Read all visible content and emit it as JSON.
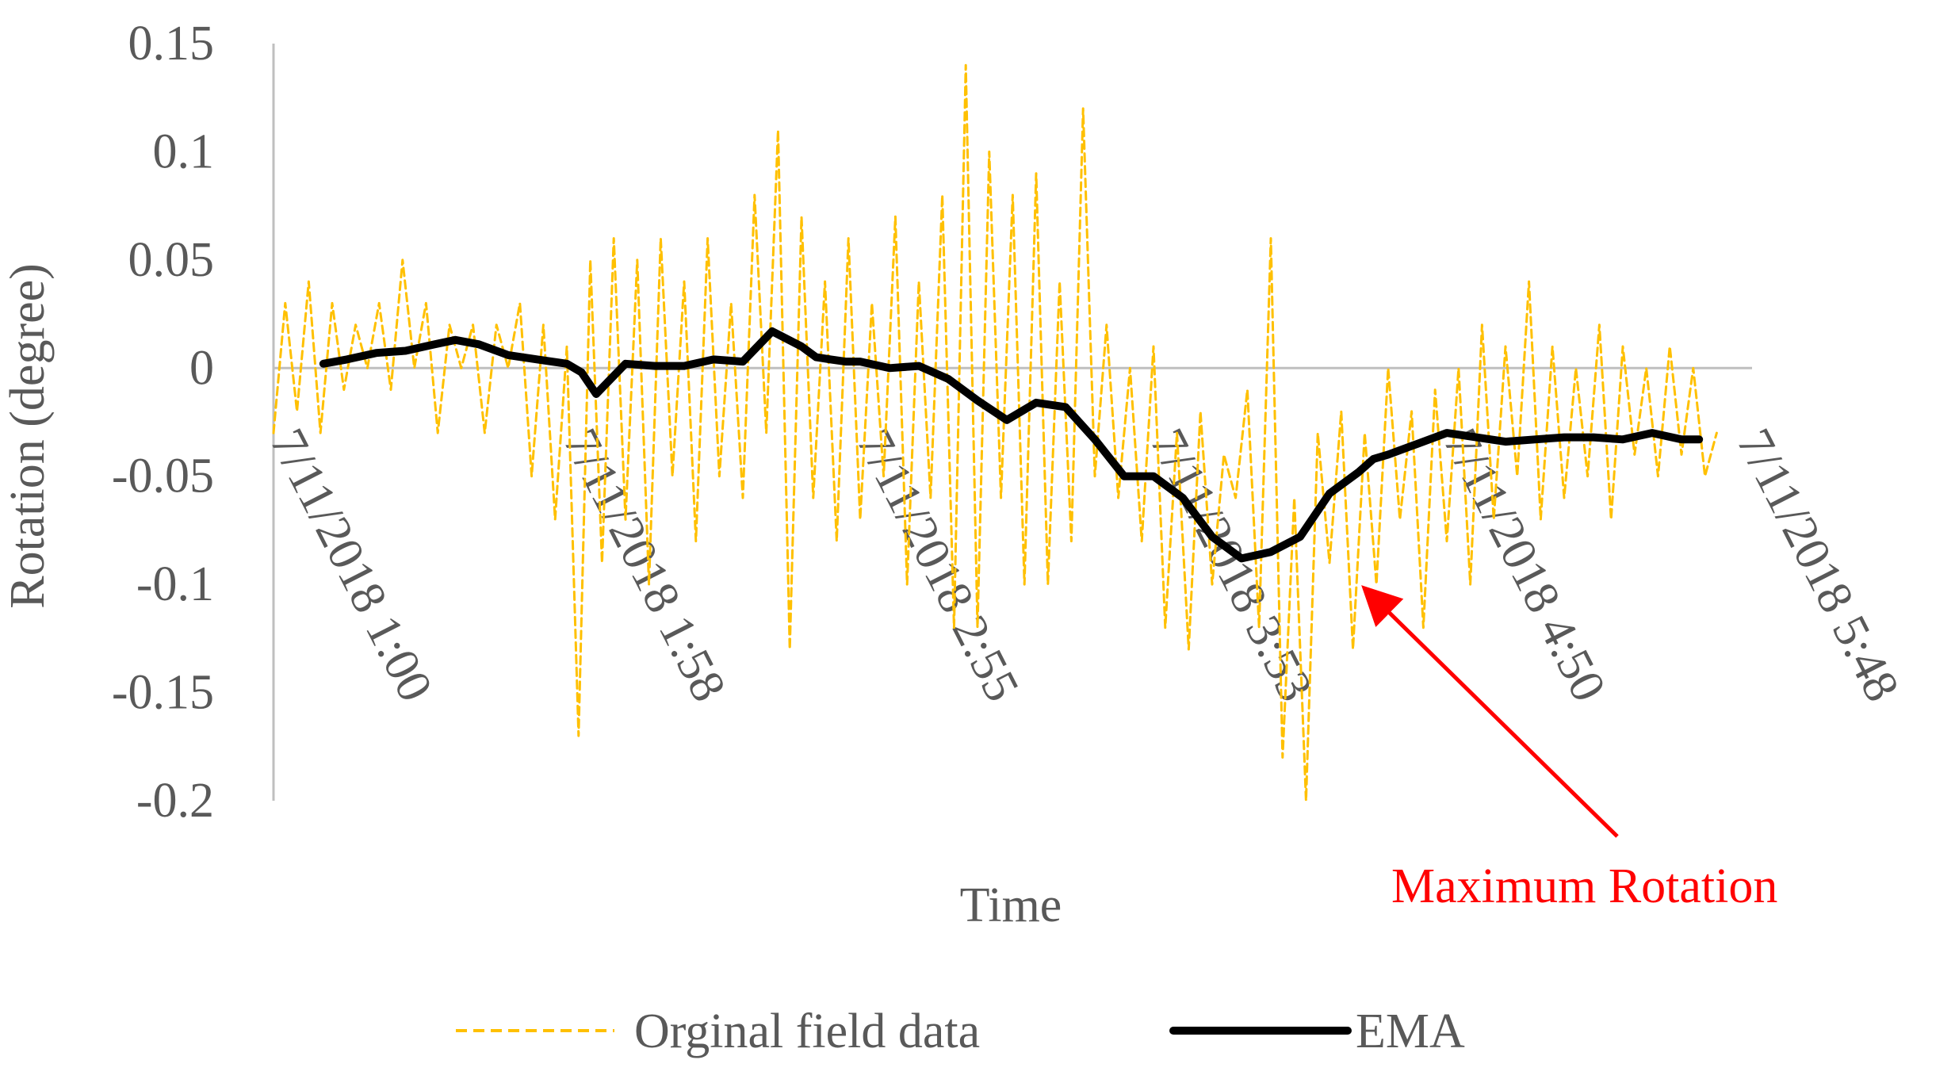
{
  "chart_data": {
    "type": "line",
    "title": "",
    "xlabel": "Time",
    "ylabel": "Rotation (degree)",
    "ylim": [
      -0.2,
      0.15
    ],
    "yticks": [
      0.15,
      0.1,
      0.05,
      0,
      -0.05,
      -0.1,
      -0.15,
      -0.2
    ],
    "ytick_labels": [
      "0.15",
      "0.1",
      "0.05",
      "0",
      "-0.05",
      "-0.1",
      "-0.15",
      "-0.2"
    ],
    "x_categories": [
      "7/11/2018 1:00",
      "7/11/2018 1:58",
      "7/11/2018 2:55",
      "7/11/2018 3:53",
      "7/11/2018 4:50",
      "7/11/2018 5:48"
    ],
    "grid": false,
    "legend_position": "bottom",
    "series": [
      {
        "name": "Orginal field data",
        "style": "dashed",
        "color": "#FFC000",
        "x": [
          0,
          0.04,
          0.08,
          0.12,
          0.16,
          0.2,
          0.24,
          0.28,
          0.32,
          0.36,
          0.4,
          0.44,
          0.48,
          0.52,
          0.56,
          0.6,
          0.64,
          0.68,
          0.72,
          0.76,
          0.8,
          0.84,
          0.88,
          0.92,
          0.96,
          1.0,
          1.04,
          1.08,
          1.12,
          1.16,
          1.2,
          1.24,
          1.28,
          1.32,
          1.36,
          1.4,
          1.44,
          1.48,
          1.52,
          1.56,
          1.6,
          1.64,
          1.68,
          1.72,
          1.76,
          1.8,
          1.84,
          1.88,
          1.92,
          1.96,
          2.0,
          2.04,
          2.08,
          2.12,
          2.16,
          2.2,
          2.24,
          2.28,
          2.32,
          2.36,
          2.4,
          2.44,
          2.48,
          2.52,
          2.56,
          2.6,
          2.64,
          2.68,
          2.72,
          2.76,
          2.8,
          2.84,
          2.88,
          2.92,
          2.96,
          3.0,
          3.04,
          3.08,
          3.12,
          3.16,
          3.2,
          3.24,
          3.28,
          3.32,
          3.36,
          3.4,
          3.44,
          3.48,
          3.52,
          3.56,
          3.6,
          3.64,
          3.68,
          3.72,
          3.76,
          3.8,
          3.84,
          3.88,
          3.92,
          3.96,
          4.0,
          4.04,
          4.08,
          4.12,
          4.16,
          4.2,
          4.24,
          4.28,
          4.32,
          4.36,
          4.4,
          4.44,
          4.48,
          4.52,
          4.56,
          4.6,
          4.64,
          4.68,
          4.72,
          4.76,
          4.8,
          4.84,
          4.88,
          4.92
        ],
        "y": [
          -0.03,
          0.03,
          -0.02,
          0.04,
          -0.03,
          0.03,
          -0.01,
          0.02,
          0.0,
          0.03,
          -0.01,
          0.05,
          0.0,
          0.03,
          -0.03,
          0.02,
          0.0,
          0.02,
          -0.03,
          0.02,
          0.0,
          0.03,
          -0.05,
          0.02,
          -0.07,
          0.01,
          -0.17,
          0.05,
          -0.09,
          0.06,
          -0.07,
          0.05,
          -0.1,
          0.06,
          -0.05,
          0.04,
          -0.08,
          0.06,
          -0.05,
          0.03,
          -0.06,
          0.08,
          -0.03,
          0.11,
          -0.13,
          0.07,
          -0.06,
          0.04,
          -0.08,
          0.06,
          -0.07,
          0.03,
          -0.05,
          0.07,
          -0.1,
          0.04,
          -0.06,
          0.08,
          -0.12,
          0.14,
          -0.12,
          0.1,
          -0.06,
          0.08,
          -0.1,
          0.09,
          -0.1,
          0.04,
          -0.08,
          0.12,
          -0.05,
          0.02,
          -0.06,
          0.0,
          -0.08,
          0.01,
          -0.12,
          -0.03,
          -0.13,
          -0.02,
          -0.1,
          -0.04,
          -0.06,
          -0.01,
          -0.12,
          0.06,
          -0.18,
          -0.06,
          -0.2,
          -0.03,
          -0.09,
          -0.02,
          -0.13,
          -0.03,
          -0.1,
          0.0,
          -0.07,
          -0.02,
          -0.12,
          -0.01,
          -0.08,
          0.0,
          -0.1,
          0.02,
          -0.07,
          0.01,
          -0.05,
          0.04,
          -0.07,
          0.01,
          -0.06,
          0.0,
          -0.05,
          0.02,
          -0.07,
          0.01,
          -0.04,
          0.0,
          -0.05,
          0.01,
          -0.04,
          0.0,
          -0.05,
          -0.03
        ]
      },
      {
        "name": "EMA",
        "style": "solid",
        "color": "#000000",
        "x": [
          0.17,
          0.25,
          0.35,
          0.45,
          0.55,
          0.62,
          0.7,
          0.8,
          0.9,
          1.0,
          1.05,
          1.1,
          1.2,
          1.3,
          1.4,
          1.5,
          1.6,
          1.7,
          1.8,
          1.85,
          1.9,
          1.95,
          2.0,
          2.1,
          2.2,
          2.3,
          2.4,
          2.5,
          2.6,
          2.7,
          2.8,
          2.9,
          3.0,
          3.1,
          3.2,
          3.3,
          3.4,
          3.5,
          3.6,
          3.7,
          3.75,
          3.8,
          3.9,
          4.0,
          4.1,
          4.2,
          4.3,
          4.4,
          4.5,
          4.6,
          4.7,
          4.8,
          4.86
        ],
        "y": [
          0.002,
          0.004,
          0.007,
          0.008,
          0.011,
          0.013,
          0.011,
          0.006,
          0.004,
          0.002,
          -0.002,
          -0.012,
          0.002,
          0.001,
          0.001,
          0.004,
          0.003,
          0.017,
          0.01,
          0.005,
          0.004,
          0.003,
          0.003,
          0.0,
          0.001,
          -0.005,
          -0.015,
          -0.024,
          -0.016,
          -0.018,
          -0.033,
          -0.05,
          -0.05,
          -0.06,
          -0.078,
          -0.088,
          -0.085,
          -0.078,
          -0.058,
          -0.048,
          -0.042,
          -0.04,
          -0.035,
          -0.03,
          -0.032,
          -0.034,
          -0.033,
          -0.032,
          -0.032,
          -0.033,
          -0.03,
          -0.033,
          -0.033
        ]
      }
    ],
    "annotations": [
      {
        "text": "Maximum Rotation",
        "color": "#FF0000",
        "points_to": {
          "x": 3.72,
          "y": -0.1
        }
      }
    ]
  }
}
